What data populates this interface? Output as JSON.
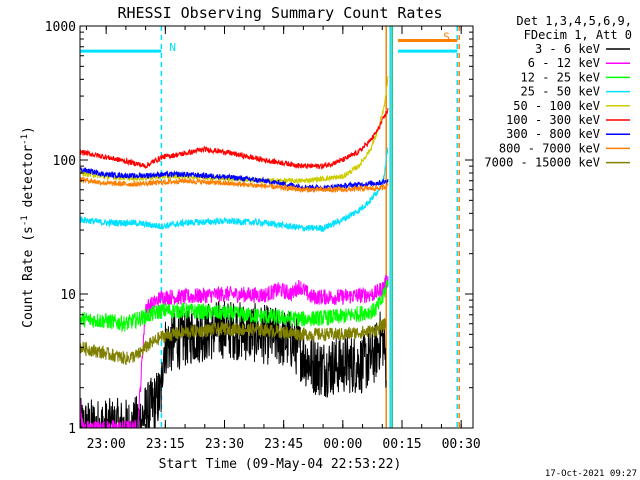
{
  "chart_data": {
    "type": "line",
    "title": "RHESSI Observing Summary Count Rates",
    "xlabel": "Start Time (09-May-04 22:53:22)",
    "ylabel_main": "Count Rate (s",
    "ylabel_sup1": "-1",
    "ylabel_mid": " detector",
    "ylabel_sup2": "-1",
    "ylabel_end": ")",
    "yscale": "log",
    "ylim": [
      1,
      1000
    ],
    "xlim": [
      "22:53:22",
      "00:33:00"
    ],
    "x_ticks": [
      "23:00",
      "23:15",
      "23:30",
      "23:45",
      "00:00",
      "00:15",
      "00:30"
    ],
    "y_ticks": [
      "1",
      "10",
      "100",
      "1000"
    ],
    "footer_date": "17-Oct-2021 09:27",
    "legend": {
      "header1": "Det 1,3,4,5,6,9,",
      "header2": "FDecim 1, Att 0",
      "position": "right"
    },
    "flags": [
      {
        "label": "N",
        "color": "#00e0ff",
        "level": 650,
        "segments": [
          [
            "22:53:22",
            "23:14:00"
          ],
          [
            "00:14:00",
            "00:29:00"
          ]
        ]
      },
      {
        "label": "S",
        "color": "#ff7f00",
        "level": 780,
        "segments": [
          [
            "00:14:00",
            "00:29:00"
          ]
        ]
      }
    ],
    "vlines": [
      {
        "x": "23:14:00",
        "color": "#00e0ff",
        "style": "dashed"
      },
      {
        "x": "00:11:00",
        "color": "#ff7f00",
        "style": "solid"
      },
      {
        "x": "00:12:00",
        "color": "#00e0ff",
        "style": "solid"
      },
      {
        "x": "00:12:30",
        "color": "#00c080",
        "style": "solid"
      },
      {
        "x": "00:29:00",
        "color": "#00e0ff",
        "style": "dashed"
      },
      {
        "x": "00:29:30",
        "color": "#ff7f00",
        "style": "dashed"
      }
    ],
    "series": [
      {
        "name": "3 - 6 keV",
        "color": "#000000",
        "noise": 0.45,
        "points": [
          [
            "22:53:22",
            1.0
          ],
          [
            "23:07:00",
            1.0
          ],
          [
            "23:12:00",
            1.5
          ],
          [
            "23:14:00",
            1.8
          ],
          [
            "23:14:30",
            4.0
          ],
          [
            "23:18:00",
            4.5
          ],
          [
            "23:22:00",
            5.0
          ],
          [
            "23:30:00",
            5.5
          ],
          [
            "23:40:00",
            5.0
          ],
          [
            "23:47:00",
            4.5
          ],
          [
            "23:52:00",
            3.0
          ],
          [
            "23:55:00",
            2.8
          ],
          [
            "00:00:00",
            3.0
          ],
          [
            "00:05:00",
            3.0
          ],
          [
            "00:08:00",
            3.5
          ],
          [
            "00:10:00",
            5.0
          ],
          [
            "00:11:00",
            3.0
          ]
        ]
      },
      {
        "name": "6 - 12 keV",
        "color": "#ff00ff",
        "noise": 0.12,
        "points": [
          [
            "22:53:22",
            1.6
          ],
          [
            "22:54:00",
            1.0
          ],
          [
            "23:08:00",
            1.0
          ],
          [
            "23:10:00",
            8.0
          ],
          [
            "23:12:00",
            8.5
          ],
          [
            "23:14:00",
            9.5
          ],
          [
            "23:20:00",
            9.5
          ],
          [
            "23:30:00",
            10.0
          ],
          [
            "23:40:00",
            9.8
          ],
          [
            "23:44:00",
            10.8
          ],
          [
            "23:47:00",
            10.0
          ],
          [
            "23:49:00",
            11.5
          ],
          [
            "23:52:00",
            9.5
          ],
          [
            "00:00:00",
            9.5
          ],
          [
            "00:08:00",
            10.0
          ],
          [
            "00:10:00",
            11.0
          ],
          [
            "00:11:30",
            13.0
          ]
        ]
      },
      {
        "name": "12 - 25 keV",
        "color": "#00ff00",
        "noise": 0.12,
        "points": [
          [
            "22:53:22",
            6.5
          ],
          [
            "23:00:00",
            6.3
          ],
          [
            "23:05:00",
            6.0
          ],
          [
            "23:10:00",
            6.8
          ],
          [
            "23:14:00",
            7.5
          ],
          [
            "23:20:00",
            7.5
          ],
          [
            "23:30:00",
            7.2
          ],
          [
            "23:40:00",
            6.8
          ],
          [
            "23:50:00",
            6.5
          ],
          [
            "00:00:00",
            6.8
          ],
          [
            "00:08:00",
            7.5
          ],
          [
            "00:10:00",
            9.0
          ],
          [
            "00:11:30",
            13.0
          ]
        ]
      },
      {
        "name": "25 - 50 keV",
        "color": "#00e0ff",
        "noise": 0.05,
        "points": [
          [
            "22:53:22",
            36
          ],
          [
            "23:00:00",
            34
          ],
          [
            "23:07:00",
            34
          ],
          [
            "23:10:00",
            33
          ],
          [
            "23:14:00",
            32
          ],
          [
            "23:20:00",
            34
          ],
          [
            "23:30:00",
            35
          ],
          [
            "23:40:00",
            34
          ],
          [
            "23:50:00",
            31
          ],
          [
            "23:55:00",
            31
          ],
          [
            "00:00:00",
            36
          ],
          [
            "00:04:00",
            42
          ],
          [
            "00:07:00",
            50
          ],
          [
            "00:09:00",
            60
          ],
          [
            "00:10:30",
            75
          ],
          [
            "00:11:30",
            130
          ]
        ]
      },
      {
        "name": "50 - 100 keV",
        "color": "#cccc00",
        "noise": 0.04,
        "points": [
          [
            "22:53:22",
            80
          ],
          [
            "23:00:00",
            75
          ],
          [
            "23:07:00",
            73
          ],
          [
            "23:14:00",
            75
          ],
          [
            "23:20:00",
            76
          ],
          [
            "23:30:00",
            73
          ],
          [
            "23:40:00",
            70
          ],
          [
            "23:50:00",
            70
          ],
          [
            "00:00:00",
            75
          ],
          [
            "00:04:00",
            90
          ],
          [
            "00:07:00",
            120
          ],
          [
            "00:09:00",
            170
          ],
          [
            "00:10:30",
            250
          ],
          [
            "00:11:30",
            420
          ]
        ]
      },
      {
        "name": "100 - 300 keV",
        "color": "#ff0000",
        "noise": 0.04,
        "points": [
          [
            "22:53:22",
            115
          ],
          [
            "23:00:00",
            105
          ],
          [
            "23:07:00",
            95
          ],
          [
            "23:10:00",
            90
          ],
          [
            "23:14:00",
            105
          ],
          [
            "23:20:00",
            112
          ],
          [
            "23:25:00",
            120
          ],
          [
            "23:30:00",
            115
          ],
          [
            "23:40:00",
            100
          ],
          [
            "23:45:00",
            95
          ],
          [
            "23:50:00",
            90
          ],
          [
            "23:55:00",
            90
          ],
          [
            "00:00:00",
            100
          ],
          [
            "00:04:00",
            115
          ],
          [
            "00:07:00",
            140
          ],
          [
            "00:09:00",
            170
          ],
          [
            "00:10:30",
            210
          ],
          [
            "00:11:30",
            240
          ]
        ]
      },
      {
        "name": "300 - 800 keV",
        "color": "#0000ff",
        "noise": 0.04,
        "points": [
          [
            "22:53:22",
            85
          ],
          [
            "23:00:00",
            78
          ],
          [
            "23:07:00",
            76
          ],
          [
            "23:14:00",
            78
          ],
          [
            "23:20:00",
            78
          ],
          [
            "23:30:00",
            75
          ],
          [
            "23:40:00",
            70
          ],
          [
            "23:50:00",
            63
          ],
          [
            "23:55:00",
            62
          ],
          [
            "00:00:00",
            64
          ],
          [
            "00:05:00",
            66
          ],
          [
            "00:10:00",
            68
          ],
          [
            "00:11:30",
            70
          ]
        ]
      },
      {
        "name": "800 - 7000 keV",
        "color": "#ff7f00",
        "noise": 0.04,
        "points": [
          [
            "22:53:22",
            72
          ],
          [
            "23:00:00",
            67
          ],
          [
            "23:07:00",
            66
          ],
          [
            "23:14:00",
            68
          ],
          [
            "23:20:00",
            70
          ],
          [
            "23:30:00",
            67
          ],
          [
            "23:40:00",
            64
          ],
          [
            "23:50:00",
            60
          ],
          [
            "00:00:00",
            60
          ],
          [
            "00:05:00",
            61
          ],
          [
            "00:10:00",
            62
          ],
          [
            "00:11:30",
            65
          ]
        ]
      },
      {
        "name": "7000 - 15000 keV",
        "color": "#808000",
        "noise": 0.1,
        "points": [
          [
            "22:53:22",
            4.0
          ],
          [
            "23:00:00",
            3.6
          ],
          [
            "23:05:00",
            3.3
          ],
          [
            "23:08:00",
            3.5
          ],
          [
            "23:10:00",
            4.0
          ],
          [
            "23:14:00",
            4.8
          ],
          [
            "23:20:00",
            5.2
          ],
          [
            "23:30:00",
            5.5
          ],
          [
            "23:40:00",
            5.4
          ],
          [
            "23:50:00",
            5.0
          ],
          [
            "00:00:00",
            5.0
          ],
          [
            "00:08:00",
            5.3
          ],
          [
            "00:11:00",
            6.0
          ]
        ]
      }
    ]
  }
}
